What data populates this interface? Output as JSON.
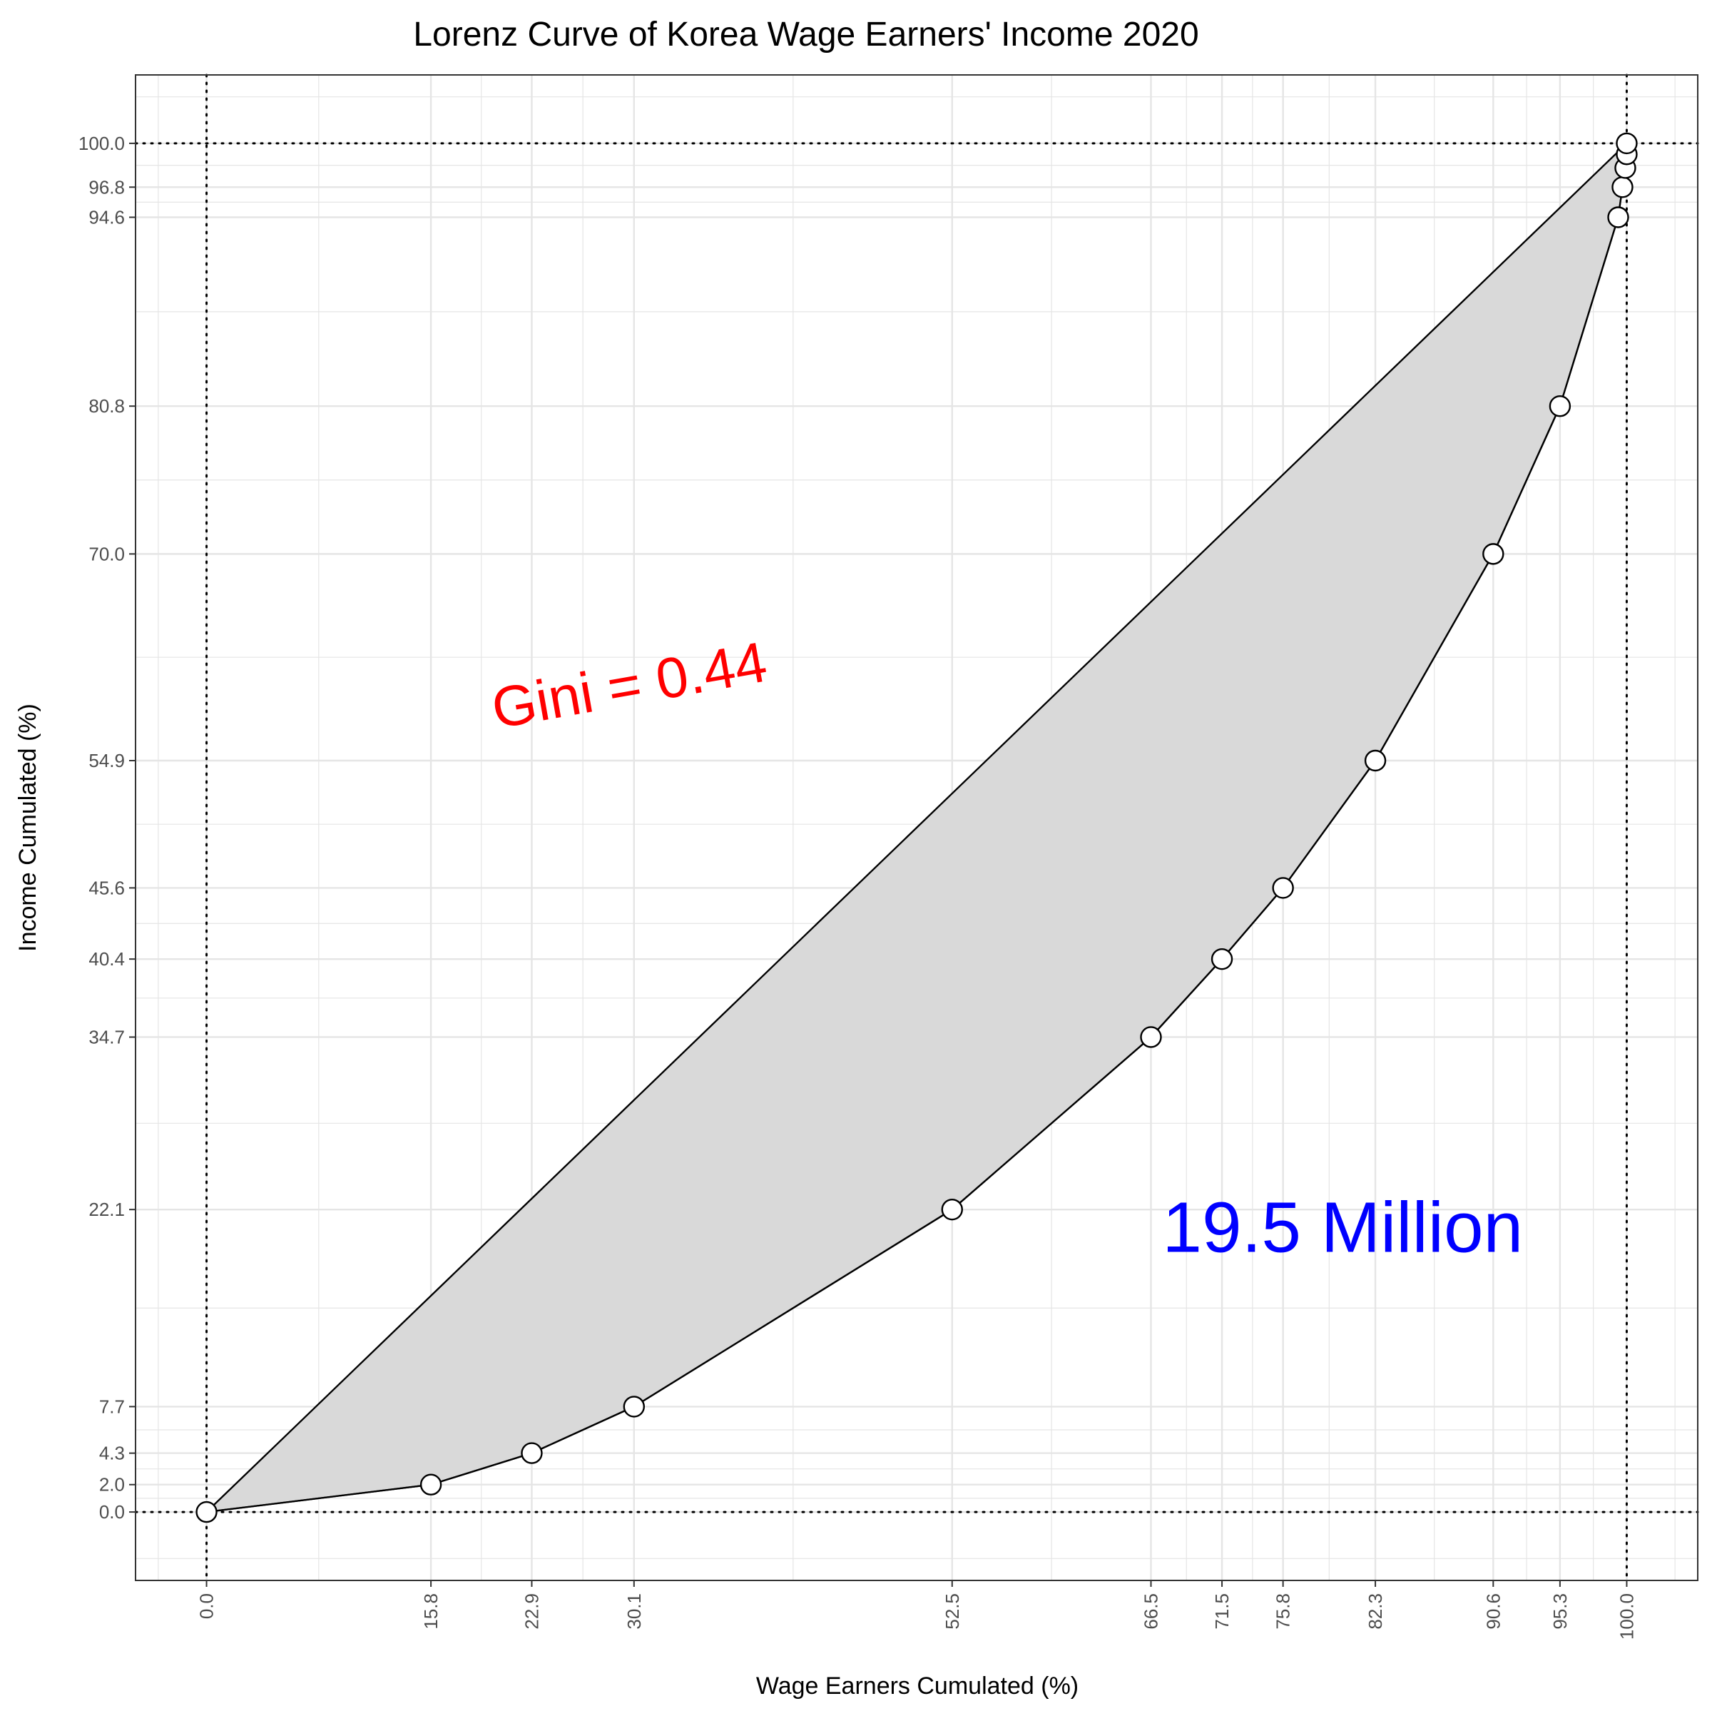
{
  "chart_data": {
    "type": "area",
    "title": "Lorenz Curve of Korea Wage Earners' Income 2020",
    "xlabel": "Wage Earners Cumulated (%)",
    "ylabel": "Income Cumulated (%)",
    "xlim": [
      -5,
      105
    ],
    "ylim": [
      -5,
      105
    ],
    "x_ticks": [
      "0.0",
      "15.8",
      "22.9",
      "30.1",
      "52.5",
      "66.5",
      "71.5",
      "75.8",
      "82.3",
      "90.6",
      "95.3",
      "100.0"
    ],
    "y_ticks": [
      "0.0",
      "2.0",
      "4.3",
      "7.7",
      "22.1",
      "34.7",
      "40.4",
      "45.6",
      "54.9",
      "70.0",
      "80.8",
      "94.6",
      "96.8",
      "100.0"
    ],
    "grid": true,
    "reference_lines": {
      "x": [
        0,
        100
      ],
      "y": [
        0,
        100
      ],
      "style": "dotted"
    },
    "equality_line": [
      [
        0,
        0
      ],
      [
        100,
        100
      ]
    ],
    "series": [
      {
        "x": [
          0.0,
          15.8,
          22.9,
          30.1,
          52.5,
          66.5,
          71.5,
          75.8,
          82.3,
          90.6,
          95.3,
          99.4,
          99.7,
          99.9,
          100.0,
          100.0
        ],
        "y": [
          0.0,
          2.0,
          4.3,
          7.7,
          22.1,
          34.7,
          40.4,
          45.6,
          54.9,
          70.0,
          80.8,
          94.6,
          96.8,
          98.2,
          99.2,
          100.0
        ]
      }
    ],
    "annotations": [
      {
        "text": "Gini =  0.44",
        "x": 30,
        "y": 59,
        "color": "#ff0000",
        "rotation": -10
      },
      {
        "text": "19.5 Million",
        "x": 80,
        "y": 19,
        "color": "#0000ff",
        "rotation": 0
      }
    ],
    "colors": {
      "fill": "#d9d9d9",
      "line": "#000000",
      "grid": "#e5e5e5",
      "point_fill": "#ffffff"
    }
  }
}
